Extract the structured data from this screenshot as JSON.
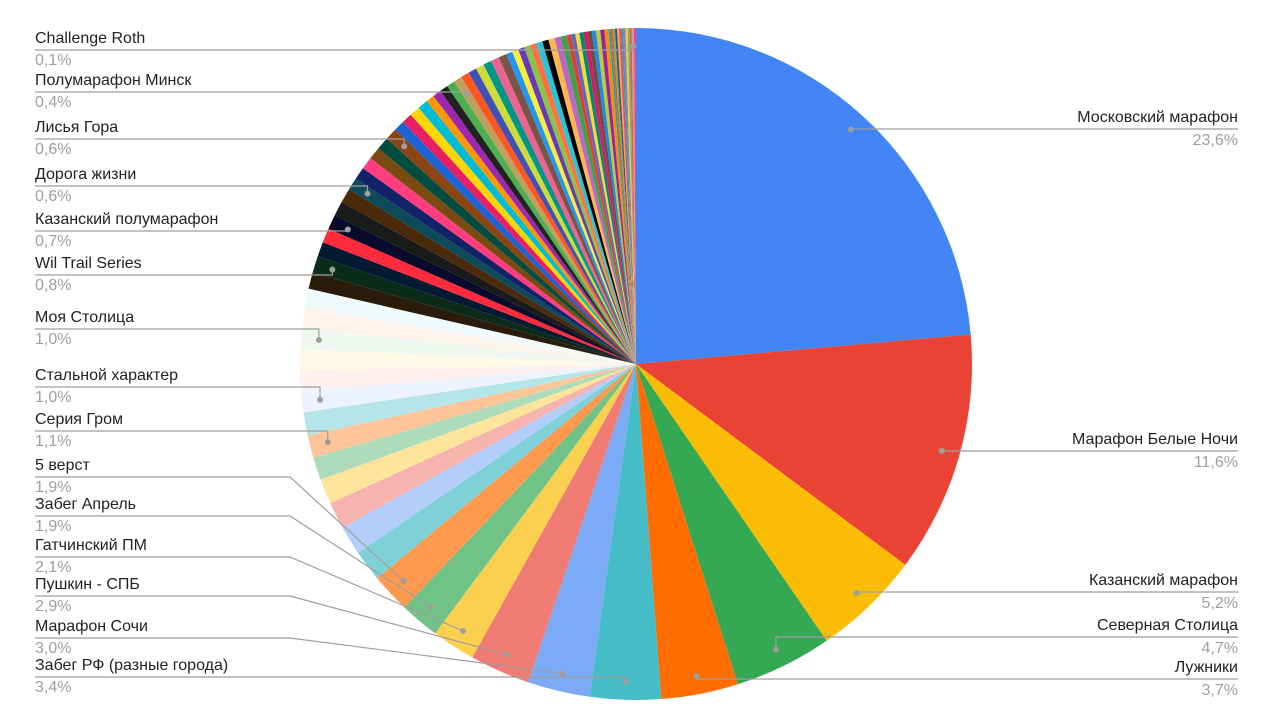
{
  "chart_data": {
    "type": "pie",
    "categories": [
      "Московский марафон",
      "Марафон Белые Ночи",
      "Казанский марафон",
      "Северная Столица",
      "Лужники",
      "Забег РФ (разные города)",
      "Марафон Сочи",
      "Пушкин - СПБ",
      "Гатчинский ПМ",
      "Забег Апрель",
      "5 верст",
      null,
      null,
      null,
      null,
      null,
      "Серия Гром",
      null,
      "Стальной характер",
      null,
      null,
      "Моя Столица",
      null,
      null,
      null,
      "Wil Trail Series",
      null,
      null,
      "Казанский полумарафон",
      null,
      null,
      "Дорога жизни",
      null,
      null,
      null,
      null,
      "Лисья Гора",
      null,
      null,
      null,
      null,
      null,
      null,
      null,
      null,
      "Полумарафон Минск",
      null,
      null,
      null,
      null,
      null,
      null,
      null,
      null,
      null,
      null,
      null,
      null,
      null,
      null,
      null,
      null,
      null,
      null,
      null,
      null,
      null,
      null,
      null,
      null,
      null,
      null,
      null,
      null,
      null,
      null,
      null,
      null,
      null,
      null,
      null,
      null,
      null,
      "Challenge Roth",
      null
    ],
    "values": [
      23.6,
      11.6,
      5.2,
      4.7,
      3.7,
      3.4,
      3.0,
      2.9,
      2.1,
      1.9,
      1.9,
      1.5,
      1.4,
      1.3,
      1.2,
      1.1,
      1.1,
      1.1,
      1.0,
      1.0,
      1.0,
      1.0,
      1.0,
      0.9,
      0.8,
      0.8,
      0.7,
      0.7,
      0.7,
      0.7,
      0.7,
      0.6,
      0.6,
      0.6,
      0.6,
      0.6,
      0.6,
      0.5,
      0.5,
      0.5,
      0.5,
      0.4,
      0.4,
      0.4,
      0.4,
      0.4,
      0.4,
      0.4,
      0.4,
      0.4,
      0.4,
      0.4,
      0.3,
      0.3,
      0.3,
      0.3,
      0.3,
      0.3,
      0.3,
      0.3,
      0.3,
      0.3,
      0.2,
      0.2,
      0.2,
      0.2,
      0.2,
      0.2,
      0.2,
      0.2,
      0.2,
      0.2,
      0.1,
      0.1,
      0.1,
      0.1,
      0.1,
      0.1,
      0.1,
      0.1,
      0.1,
      0.1,
      0.1,
      0.1,
      0.1
    ],
    "value_labels": [
      "23,6%",
      "11,6%",
      "5,2%",
      "4,7%",
      "3,7%",
      "3,4%",
      "3,0%",
      "2,9%",
      "2,1%",
      "1,9%",
      "1,9%",
      null,
      null,
      null,
      null,
      null,
      "1,1%",
      null,
      "1,0%",
      null,
      null,
      "1,0%",
      null,
      null,
      null,
      "0,8%",
      null,
      null,
      "0,7%",
      null,
      null,
      "0,6%",
      null,
      null,
      null,
      null,
      "0,6%",
      null,
      null,
      null,
      null,
      null,
      null,
      null,
      null,
      "0,4%",
      null,
      null,
      null,
      null,
      null,
      null,
      null,
      null,
      null,
      null,
      null,
      null,
      null,
      null,
      null,
      null,
      null,
      null,
      null,
      null,
      null,
      null,
      null,
      null,
      null,
      null,
      null,
      null,
      null,
      null,
      null,
      null,
      null,
      null,
      null,
      null,
      null,
      "0,1%",
      null
    ],
    "colors": [
      "#4285f4",
      "#ea4335",
      "#fbbc04",
      "#34a853",
      "#ff6d01",
      "#46bdc6",
      "#7baaf7",
      "#f07b72",
      "#fcd04f",
      "#71c287",
      "#ff994d",
      "#7ed1d7",
      "#b3cefb",
      "#f7b4ae",
      "#fde49b",
      "#aedcba",
      "#ffc599",
      "#b5e5e8",
      "#ecf3fe",
      "#fdf0ef",
      "#fff9e6",
      "#eef8f1",
      "#fff4ec",
      "#f0fafb",
      "#2a1b0b",
      "#0b2b1a",
      "#041a33",
      "#ff2a3c",
      "#0a0a2a",
      "#1a1a1a",
      "#4a2a0a",
      "#0d4a5a",
      "#112266",
      "#ff3d7f",
      "#7a4a10",
      "#004d40",
      "#8b4513",
      "#1e63d6",
      "#e91e63",
      "#ffd600",
      "#00bcd4",
      "#ff9800",
      "#9c27b0",
      "#212121",
      "#4caf50",
      "#c0a060",
      "#ff5722",
      "#3f51b5",
      "#cddc39",
      "#009688",
      "#f06292",
      "#795548",
      "#2196f3",
      "#ffeb3b",
      "#673ab7",
      "#8bc34a",
      "#ff7043",
      "#26c6da",
      "#000000",
      "#ffb74d",
      "#ba68c8",
      "#43a047",
      "#e53935",
      "#5c6bc0",
      "#fdd835",
      "#00897b",
      "#d81b60",
      "#6d4c41",
      "#1e88e5",
      "#c0ca33",
      "#8e24aa",
      "#fb8c00",
      "#00acc1",
      "#f4511e",
      "#7cb342",
      "#3949ab",
      "#ffa726",
      "#ec407a",
      "#26a69a",
      "#9575cd",
      "#ffca28",
      "#66bb6a",
      "#ef5350",
      "#aaaaaa",
      "#ff4081"
    ]
  }
}
